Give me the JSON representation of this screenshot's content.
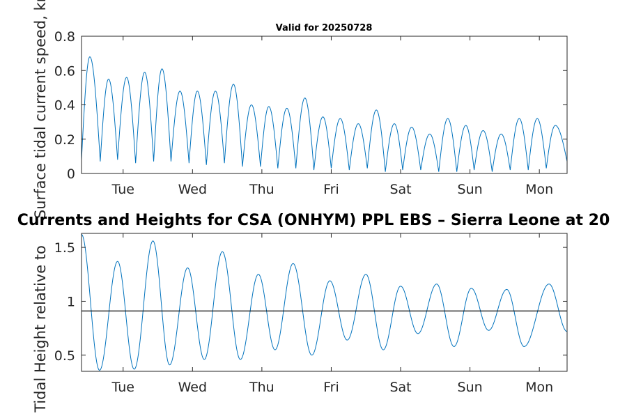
{
  "chart_data": [
    {
      "type": "line",
      "title": "Valid for 20250728",
      "ylabel": "Surface tidal current speed, kn",
      "xlim": [
        0,
        7
      ],
      "ylim": [
        0,
        0.8
      ],
      "yticks": [
        0,
        0.2,
        0.4,
        0.6,
        0.8
      ],
      "ytick_labels": [
        "0",
        "0.2",
        "0.4",
        "0.6",
        "0.8"
      ],
      "xticks": [
        0.6,
        1.6,
        2.6,
        3.6,
        4.6,
        5.6,
        6.6
      ],
      "xtick_labels": [
        "Tue",
        "Wed",
        "Thu",
        "Fri",
        "Sat",
        "Sun",
        "Mon"
      ],
      "grid": false,
      "series": [
        {
          "color": "#0072bd",
          "peaks": [
            [
              0.12,
              0.68
            ],
            [
              0.39,
              0.55
            ],
            [
              0.65,
              0.56
            ],
            [
              0.91,
              0.59
            ],
            [
              1.16,
              0.61
            ],
            [
              1.42,
              0.48
            ],
            [
              1.67,
              0.48
            ],
            [
              1.93,
              0.48
            ],
            [
              2.19,
              0.52
            ],
            [
              2.45,
              0.4
            ],
            [
              2.7,
              0.39
            ],
            [
              2.96,
              0.38
            ],
            [
              3.22,
              0.44
            ],
            [
              3.48,
              0.33
            ],
            [
              3.73,
              0.32
            ],
            [
              3.99,
              0.29
            ],
            [
              4.25,
              0.37
            ],
            [
              4.51,
              0.29
            ],
            [
              4.76,
              0.27
            ],
            [
              5.02,
              0.23
            ],
            [
              5.28,
              0.32
            ],
            [
              5.54,
              0.28
            ],
            [
              5.79,
              0.25
            ],
            [
              6.05,
              0.23
            ],
            [
              6.31,
              0.32
            ],
            [
              6.57,
              0.32
            ],
            [
              6.83,
              0.28
            ]
          ],
          "troughs": [
            [
              0.0,
              0.08
            ],
            [
              0.27,
              0.07
            ],
            [
              0.52,
              0.08
            ],
            [
              0.78,
              0.06
            ],
            [
              1.04,
              0.07
            ],
            [
              1.29,
              0.07
            ],
            [
              1.55,
              0.06
            ],
            [
              1.8,
              0.05
            ],
            [
              2.06,
              0.06
            ],
            [
              2.32,
              0.04
            ],
            [
              2.58,
              0.04
            ],
            [
              2.83,
              0.03
            ],
            [
              3.09,
              0.03
            ],
            [
              3.35,
              0.02
            ],
            [
              3.6,
              0.03
            ],
            [
              3.86,
              0.02
            ],
            [
              4.12,
              0.03
            ],
            [
              4.38,
              0.01
            ],
            [
              4.63,
              0.02
            ],
            [
              4.89,
              0.02
            ],
            [
              5.15,
              0.01
            ],
            [
              5.41,
              0.01
            ],
            [
              5.66,
              0.02
            ],
            [
              5.92,
              0.01
            ],
            [
              6.18,
              0.02
            ],
            [
              6.44,
              0.02
            ],
            [
              6.7,
              0.03
            ],
            [
              7.0,
              0.07
            ]
          ]
        }
      ]
    },
    {
      "type": "line",
      "title": "Currents and Heights for CSA (ONHYM) PPL EBS  – Sierra Leone at 20",
      "ylabel": "Tidal Height relative to ",
      "xlim": [
        0,
        7
      ],
      "ylim": [
        0.35,
        1.63
      ],
      "yticks": [
        0.5,
        1,
        1.5
      ],
      "ytick_labels": [
        "0.5",
        "1",
        "1.5"
      ],
      "xticks": [
        0.6,
        1.6,
        2.6,
        3.6,
        4.6,
        5.6,
        6.6
      ],
      "xtick_labels": [
        "Tue",
        "Wed",
        "Thu",
        "Fri",
        "Sat",
        "Sun",
        "Mon"
      ],
      "grid": false,
      "reference_line": 0.91,
      "series": [
        {
          "color": "#0072bd",
          "extrema": [
            [
              0.0,
              1.62
            ],
            [
              0.26,
              0.36
            ],
            [
              0.52,
              1.37
            ],
            [
              0.76,
              0.37
            ],
            [
              1.03,
              1.56
            ],
            [
              1.27,
              0.41
            ],
            [
              1.53,
              1.31
            ],
            [
              1.77,
              0.46
            ],
            [
              2.03,
              1.46
            ],
            [
              2.29,
              0.46
            ],
            [
              2.55,
              1.25
            ],
            [
              2.79,
              0.55
            ],
            [
              3.05,
              1.35
            ],
            [
              3.32,
              0.5
            ],
            [
              3.58,
              1.19
            ],
            [
              3.83,
              0.64
            ],
            [
              4.1,
              1.25
            ],
            [
              4.35,
              0.55
            ],
            [
              4.6,
              1.14
            ],
            [
              4.85,
              0.7
            ],
            [
              5.12,
              1.16
            ],
            [
              5.37,
              0.58
            ],
            [
              5.62,
              1.12
            ],
            [
              5.87,
              0.73
            ],
            [
              6.13,
              1.11
            ],
            [
              6.38,
              0.58
            ],
            [
              6.74,
              1.16
            ],
            [
              7.0,
              0.72
            ]
          ]
        }
      ]
    }
  ]
}
